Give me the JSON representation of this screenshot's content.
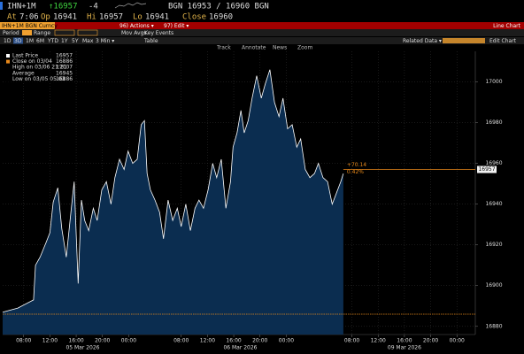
{
  "header": {
    "ticker": "IHN+1M",
    "last": "↑16957",
    "change": "-4",
    "quote": "BGN 16953 / 16960 BGN",
    "at_label": "At",
    "time": "7:06",
    "open_label": "Op",
    "open": "16941",
    "high_label": "Hi",
    "high": "16957",
    "low_label": "Lo",
    "low": "16941",
    "close_label": "Close",
    "close": "16960"
  },
  "toolbar": {
    "security": "IHN+1M BGN Curncy",
    "actions": "96) Actions ▾",
    "edit": "97) Edit ▾",
    "chart_kind": "Line Chart"
  },
  "controls": {
    "period": "Period",
    "range": "Range",
    "mov_avgs": "Mov Avgs",
    "key_events": "Key Events",
    "buttons": [
      "1D",
      "3D",
      "1M",
      "6M",
      "YTD",
      "1Y",
      "5Y",
      "Max",
      "3 Min ▾",
      "Table"
    ],
    "related": "Related Data ▾",
    "edit_chart": "Edit Chart",
    "tools": [
      "Track",
      "Annotate",
      "News",
      "Zoom"
    ]
  },
  "chart_data": {
    "type": "line",
    "x": [
      -3.2,
      -0.9,
      1.5,
      1.8,
      2.5,
      3.4,
      4.0,
      4.5,
      5.2,
      5.8,
      6.5,
      7.2,
      7.7,
      8.0,
      8.3,
      8.8,
      9.3,
      9.9,
      10.6,
      11.2,
      11.9,
      12.6,
      13.3,
      13.9,
      14.6,
      15.3,
      15.9,
      16.6,
      17.3,
      17.9,
      18.4,
      18.8,
      19.3,
      20.0,
      20.7,
      21.3,
      22.0,
      22.7,
      23.4,
      24.0,
      24.7,
      25.4,
      26.1,
      26.7,
      27.4,
      28.1,
      28.8,
      29.4,
      30.1,
      30.8,
      31.5,
      31.9,
      32.5,
      33.1,
      33.6,
      34.2,
      34.8,
      35.5,
      36.2,
      36.8,
      37.5,
      38.2,
      38.9,
      39.5,
      40.2,
      40.9,
      41.6,
      42.2,
      42.9,
      43.6,
      44.3,
      44.9,
      45.6,
      46.3,
      47.0,
      48.3,
      48.7
    ],
    "series": [
      {
        "name": "Last Price",
        "color": "#ffffff",
        "fill": "#0b2d50",
        "last_value": 16957,
        "values": [
          16887,
          16889,
          16893,
          16910,
          16914,
          16921,
          16926,
          16941,
          16948,
          16928,
          16914,
          16936,
          16951,
          16925,
          16901,
          16942,
          16932,
          16927,
          16938,
          16932,
          16947,
          16951,
          16940,
          16953,
          16962,
          16957,
          16966,
          16960,
          16962,
          16979,
          16981,
          16955,
          16947,
          16942,
          16936,
          16923,
          16942,
          16932,
          16938,
          16929,
          16940,
          16927,
          16938,
          16942,
          16938,
          16947,
          16960,
          16953,
          16962,
          16938,
          16951,
          16968,
          16975,
          16986,
          16975,
          16981,
          16992,
          17003,
          16992,
          16999,
          17006,
          16990,
          16983,
          16992,
          16977,
          16979,
          16968,
          16972,
          16957,
          16953,
          16955,
          16960,
          16953,
          16951,
          16940,
          16951,
          16955
        ]
      }
    ],
    "reference_lines": [
      {
        "label": "Close on 03/04",
        "value": 16886,
        "color": "#e8891a"
      }
    ],
    "stats": [
      {
        "label": "High on 03/06 21:21",
        "value": 17007
      },
      {
        "label": "Average",
        "value": 16945
      },
      {
        "label": "Low on 03/05 05:03",
        "value": 16886
      }
    ],
    "annotations": [
      "+70.14",
      "0.42%"
    ],
    "xlim": [
      -3.2,
      68.8
    ],
    "xticks": [
      {
        "value": 0,
        "label": "08:00"
      },
      {
        "value": 4,
        "label": "12:00"
      },
      {
        "value": 8,
        "label": "16:00"
      },
      {
        "value": 12,
        "label": "20:00"
      },
      {
        "value": 16,
        "label": "00:00"
      },
      {
        "value": 24,
        "label": "08:00"
      },
      {
        "value": 28,
        "label": "12:00"
      },
      {
        "value": 32,
        "label": "16:00"
      },
      {
        "value": 36,
        "label": "20:00"
      },
      {
        "value": 40,
        "label": "00:00"
      },
      {
        "value": 50,
        "label": "08:00"
      },
      {
        "value": 54,
        "label": "12:00"
      },
      {
        "value": 58,
        "label": "16:00"
      },
      {
        "value": 62,
        "label": "20:00"
      },
      {
        "value": 66,
        "label": "00:00"
      }
    ],
    "date_labels": [
      {
        "value": 9,
        "label": "05 Mar 2026"
      },
      {
        "value": 33,
        "label": "06 Mar 2026"
      },
      {
        "value": 58,
        "label": "09 Mar 2026"
      }
    ],
    "ylim": [
      16876,
      17015
    ],
    "yticks": [
      16880,
      16900,
      16920,
      16940,
      16960,
      16980,
      17000
    ],
    "grid": true
  }
}
